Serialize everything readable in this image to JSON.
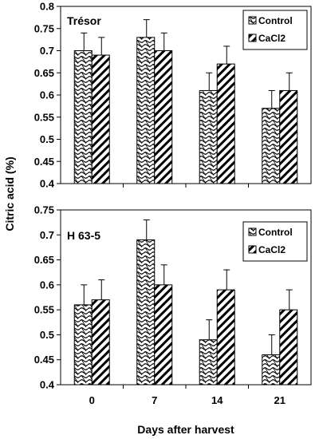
{
  "chart_data": [
    {
      "type": "bar",
      "panel_label": "Trésor",
      "categories": [
        "0",
        "7",
        "14",
        "21"
      ],
      "series": [
        {
          "name": "Control",
          "values": [
            0.7,
            0.73,
            0.61,
            0.57
          ],
          "errors": [
            0.04,
            0.04,
            0.04,
            0.04
          ]
        },
        {
          "name": "CaCl2",
          "values": [
            0.69,
            0.7,
            0.67,
            0.61
          ],
          "errors": [
            0.04,
            0.04,
            0.04,
            0.04
          ]
        }
      ],
      "ylim": [
        0.4,
        0.8
      ],
      "yticks": [
        "0.4",
        "0.45",
        "0.5",
        "0.55",
        "0.6",
        "0.65",
        "0.7",
        "0.75",
        "0.8"
      ],
      "legend_position": "top-right",
      "grid": false
    },
    {
      "type": "bar",
      "panel_label": "H 63-5",
      "categories": [
        "0",
        "7",
        "14",
        "21"
      ],
      "series": [
        {
          "name": "Control",
          "values": [
            0.56,
            0.69,
            0.49,
            0.46
          ],
          "errors": [
            0.04,
            0.04,
            0.04,
            0.04
          ]
        },
        {
          "name": "CaCl2",
          "values": [
            0.57,
            0.6,
            0.59,
            0.55
          ],
          "errors": [
            0.04,
            0.04,
            0.04,
            0.04
          ]
        }
      ],
      "ylim": [
        0.4,
        0.75
      ],
      "yticks": [
        "0.4",
        "0.45",
        "0.5",
        "0.55",
        "0.6",
        "0.65",
        "0.7",
        "0.75"
      ],
      "legend_position": "top-right",
      "grid": false
    }
  ],
  "ylabel": "Citric acid (%)",
  "xlabel": "Days after harvest",
  "xtick_labels": [
    "0",
    "7",
    "14",
    "21"
  ]
}
